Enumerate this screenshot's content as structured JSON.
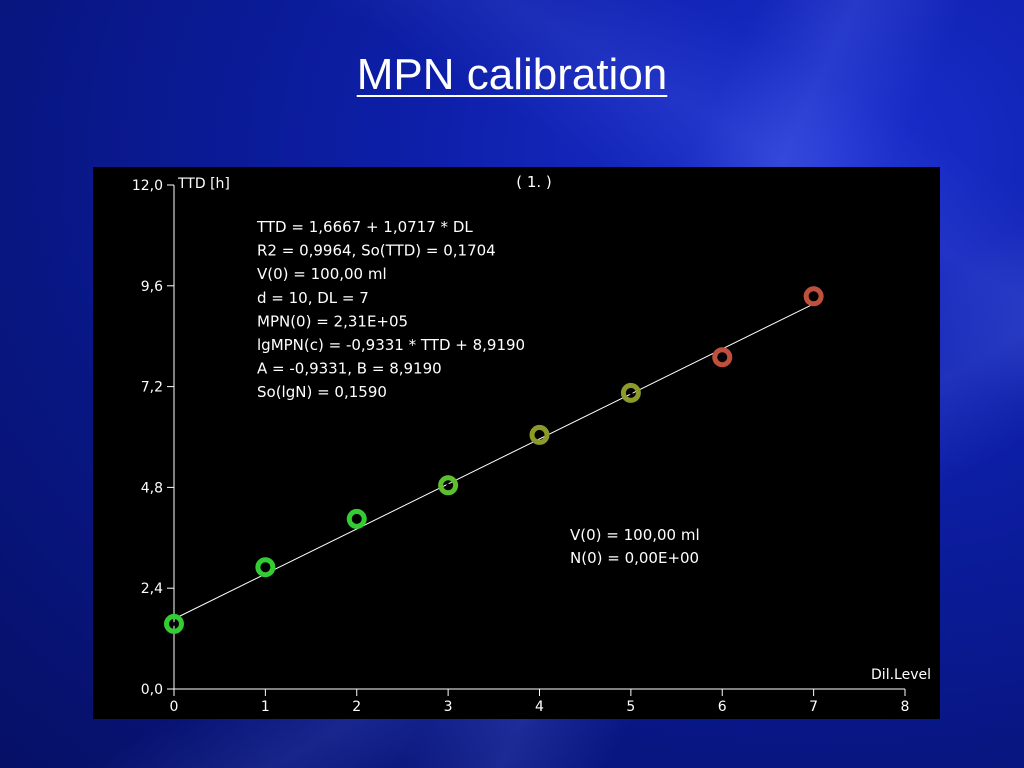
{
  "slide": {
    "title": "MPN calibration"
  },
  "colors": {
    "background": "#0b1a9c",
    "plot_bg": "#000000",
    "axis": "#ffffff",
    "fit_line": "#ffffff",
    "green": "#33cc33",
    "olive": "#8c9a2a",
    "red": "#c0503e"
  },
  "chart_data": {
    "type": "scatter",
    "run_label": "( 1. )",
    "ylabel": "TTD [h]",
    "xlabel": "Dil.Level",
    "xlim": [
      0,
      8
    ],
    "ylim": [
      0,
      12
    ],
    "x_ticks": [
      "0",
      "1",
      "2",
      "3",
      "4",
      "5",
      "6",
      "7",
      "8"
    ],
    "y_ticks": [
      "0,0",
      "2,4",
      "4,8",
      "7,2",
      "9,6",
      "12,0"
    ],
    "y_tick_values": [
      0,
      2.4,
      4.8,
      7.2,
      9.6,
      12.0
    ],
    "points": [
      {
        "x": 0,
        "y": 1.55,
        "color": "#33cc33"
      },
      {
        "x": 1,
        "y": 2.9,
        "color": "#33cc33"
      },
      {
        "x": 2,
        "y": 4.05,
        "color": "#33cc33"
      },
      {
        "x": 3,
        "y": 4.85,
        "color": "#5dbf2e"
      },
      {
        "x": 4,
        "y": 6.05,
        "color": "#8c9a2a"
      },
      {
        "x": 5,
        "y": 7.05,
        "color": "#8c9a2a"
      },
      {
        "x": 6,
        "y": 7.9,
        "color": "#c0503e"
      },
      {
        "x": 7,
        "y": 9.35,
        "color": "#c0503e"
      }
    ],
    "fit": {
      "intercept": 1.6667,
      "slope": 1.0717,
      "x_range": [
        0,
        7
      ]
    },
    "annotations_top": [
      "TTD = 1,6667 + 1,0717 * DL",
      "R2 = 0,9964, So(TTD) = 0,1704",
      "V(0) = 100,00 ml",
      "d = 10, DL = 7",
      "MPN(0) = 2,31E+05",
      "lgMPN(c) = -0,9331 * TTD + 8,9190",
      "A = -0,9331, B = 8,9190",
      "So(lgN) = 0,1590"
    ],
    "annotations_bottom": [
      "V(0) = 100,00 ml",
      "N(0) = 0,00E+00"
    ]
  }
}
